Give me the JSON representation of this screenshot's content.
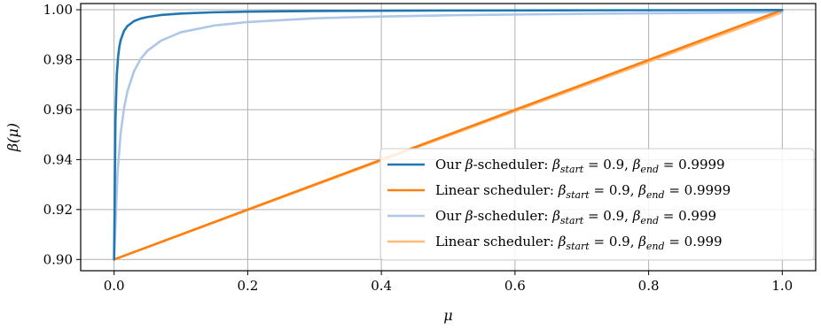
{
  "chart_data": {
    "type": "line",
    "xlabel": "μ",
    "ylabel": "β(μ)",
    "xlim": [
      -0.05,
      1.05
    ],
    "ylim": [
      0.8955,
      1.0025
    ],
    "xticks": [
      0.0,
      0.2,
      0.4,
      0.6,
      0.8,
      1.0
    ],
    "xtick_labels": [
      "0.0",
      "0.2",
      "0.4",
      "0.6",
      "0.8",
      "1.0"
    ],
    "yticks": [
      0.9,
      0.92,
      0.94,
      0.96,
      0.98,
      1.0
    ],
    "ytick_labels": [
      "0.90",
      "0.92",
      "0.94",
      "0.96",
      "0.98",
      "1.00"
    ],
    "grid": true,
    "legend_position": "lower-right",
    "series": [
      {
        "name": "Our β-scheduler: βstart = 0.9, βend = 0.9999",
        "color": "#1f77b4",
        "kind": "ours",
        "x": [
          0.0,
          0.002,
          0.004,
          0.006,
          0.008,
          0.01,
          0.015,
          0.02,
          0.03,
          0.04,
          0.05,
          0.07,
          0.1,
          0.15,
          0.2,
          0.3,
          0.5,
          0.7,
          1.0
        ],
        "y": [
          0.9,
          0.9555,
          0.9737,
          0.9812,
          0.9854,
          0.988,
          0.9916,
          0.9935,
          0.9955,
          0.9965,
          0.9971,
          0.9979,
          0.9985,
          0.999,
          0.99925,
          0.9995,
          0.99971,
          0.9998,
          0.9999
        ]
      },
      {
        "name": "Linear scheduler: βstart = 0.9, βend = 0.9999",
        "color": "#ff7f0e",
        "kind": "linear",
        "x": [
          0.0,
          1.0
        ],
        "y": [
          0.9,
          0.9999
        ]
      },
      {
        "name": "Our β-scheduler: βstart = 0.9, βend = 0.999",
        "color": "#aec7e8",
        "kind": "ours",
        "x": [
          0.0,
          0.005,
          0.01,
          0.015,
          0.02,
          0.03,
          0.04,
          0.05,
          0.07,
          0.1,
          0.15,
          0.2,
          0.3,
          0.4,
          0.5,
          0.7,
          1.0
        ],
        "y": [
          0.9,
          0.9342,
          0.9509,
          0.9608,
          0.9674,
          0.9755,
          0.9804,
          0.9836,
          0.9876,
          0.991,
          0.9937,
          0.9951,
          0.9966,
          0.9973,
          0.9978,
          0.9984,
          0.999
        ]
      },
      {
        "name": "Linear scheduler: βstart = 0.9, βend = 0.999",
        "color": "#ffbb78",
        "kind": "linear",
        "x": [
          0.0,
          1.0
        ],
        "y": [
          0.9,
          0.999
        ]
      }
    ]
  },
  "legend": {
    "entries": [
      {
        "prefix": "Our ",
        "beta": "β",
        "suffix": "-scheduler: ",
        "start_label": "start",
        "start_value": " = 0.9, ",
        "end_label": "end",
        "end_value": " = 0.9999"
      },
      {
        "prefix": "Linear scheduler: ",
        "beta": "",
        "suffix": "",
        "start_label": "start",
        "start_value": " = 0.9, ",
        "end_label": "end",
        "end_value": " = 0.9999"
      },
      {
        "prefix": "Our ",
        "beta": "β",
        "suffix": "-scheduler: ",
        "start_label": "start",
        "start_value": " = 0.9, ",
        "end_label": "end",
        "end_value": " = 0.999"
      },
      {
        "prefix": "Linear scheduler: ",
        "beta": "",
        "suffix": "",
        "start_label": "start",
        "start_value": " = 0.9, ",
        "end_label": "end",
        "end_value": " = 0.999"
      }
    ]
  }
}
